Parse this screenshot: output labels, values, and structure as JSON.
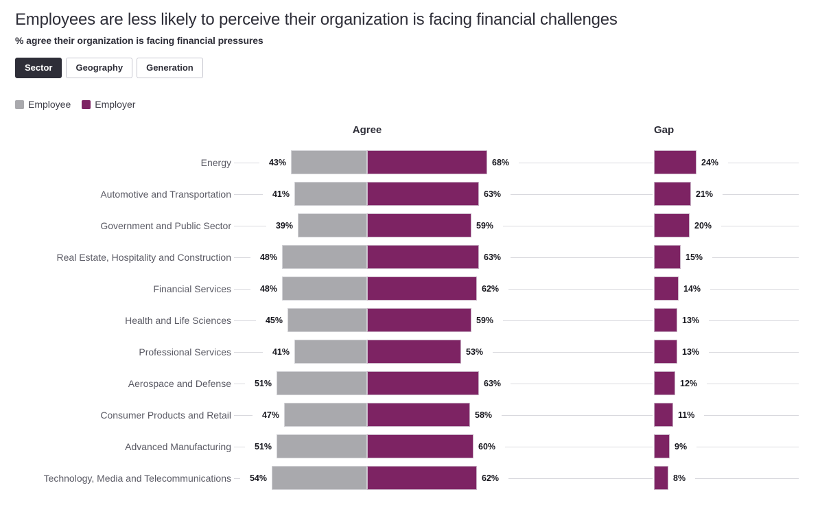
{
  "title": "Employees are less likely to perceive their organization is facing financial challenges",
  "subtitle": "% agree their organization is facing financial pressures",
  "tabs": [
    {
      "label": "Sector",
      "active": true
    },
    {
      "label": "Geography",
      "active": false
    },
    {
      "label": "Generation",
      "active": false
    }
  ],
  "legend": [
    {
      "label": "Employee",
      "color": "#a9a9ad"
    },
    {
      "label": "Employer",
      "color": "#7d2363"
    }
  ],
  "columns": {
    "agree": "Agree",
    "gap": "Gap"
  },
  "colors": {
    "employee": "#a9a9ad",
    "employer": "#7d2363",
    "dark": "#2e2e38",
    "label": "#5a5a64",
    "value": "#17171e",
    "line": "#d9d9de",
    "tab_border": "#c6c6cf",
    "active_tab_bg": "#2e2e38"
  },
  "chart_data": {
    "type": "bar",
    "layout": "diverging-horizontal with separate gap panel",
    "title": "Employees are less likely to perceive their organization is facing financial challenges",
    "subtitle": "% agree their organization is facing financial pressures",
    "panels": [
      "Agree",
      "Gap"
    ],
    "series_names": [
      "Employee",
      "Employer",
      "Gap"
    ],
    "unit": "%",
    "xlim": [
      0,
      70
    ],
    "legend_position": "top-left",
    "grid": "row leader lines only",
    "rows": [
      {
        "sector": "Energy",
        "employee": 43,
        "employer": 68,
        "gap": 24
      },
      {
        "sector": "Automotive and Transportation",
        "employee": 41,
        "employer": 63,
        "gap": 21
      },
      {
        "sector": "Government and Public Sector",
        "employee": 39,
        "employer": 59,
        "gap": 20
      },
      {
        "sector": "Real Estate, Hospitality and Construction",
        "employee": 48,
        "employer": 63,
        "gap": 15
      },
      {
        "sector": "Financial Services",
        "employee": 48,
        "employer": 62,
        "gap": 14
      },
      {
        "sector": "Health and Life Sciences",
        "employee": 45,
        "employer": 59,
        "gap": 13
      },
      {
        "sector": "Professional Services",
        "employee": 41,
        "employer": 53,
        "gap": 13
      },
      {
        "sector": "Aerospace and Defense",
        "employee": 51,
        "employer": 63,
        "gap": 12
      },
      {
        "sector": "Consumer Products and Retail",
        "employee": 47,
        "employer": 58,
        "gap": 11
      },
      {
        "sector": "Advanced Manufacturing",
        "employee": 51,
        "employer": 60,
        "gap": 9
      },
      {
        "sector": "Technology, Media and Telecommunications",
        "employee": 54,
        "employer": 62,
        "gap": 8
      }
    ]
  }
}
